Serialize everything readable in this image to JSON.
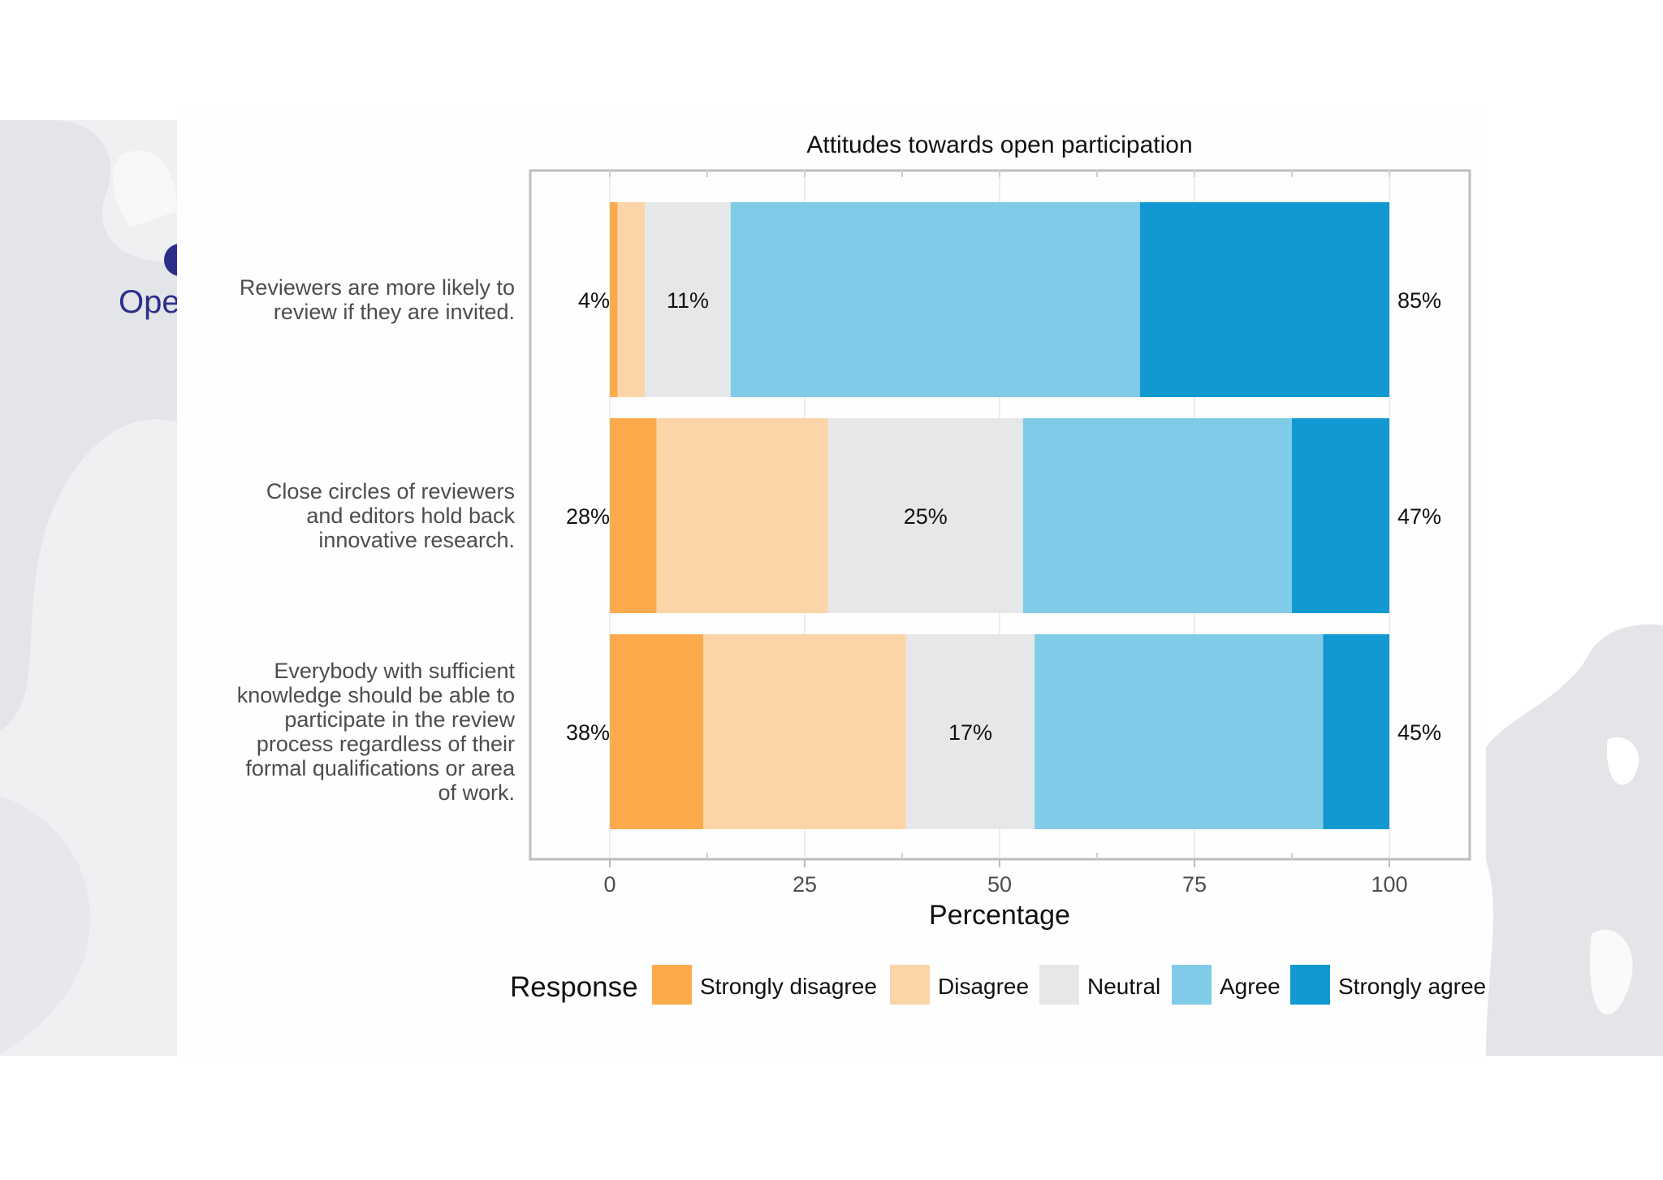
{
  "logo": {
    "text": "Ope"
  },
  "colors": {
    "strongly_disagree": "#FDAA4C",
    "disagree": "#FBD5A7",
    "neutral": "#E6E7E9",
    "agree": "#80CBE8",
    "strongly_agree": "#1399D1",
    "frame": "#BDBDBD",
    "text": "#4D4D4D",
    "logo": "#2B2F8A",
    "blob": "#E3E5E8"
  },
  "chart_data": {
    "type": "bar",
    "orientation": "horizontal",
    "stacked": true,
    "title": "Attitudes towards open participation",
    "xlabel": "Percentage",
    "ylabel": "",
    "xlim": [
      -10,
      110
    ],
    "xticks": [
      0,
      25,
      50,
      75,
      100
    ],
    "grid": true,
    "categories": [
      "Reviewers are more likely to review if they are invited.",
      "Close circles of reviewers and editors hold back innovative research.",
      "Everybody with sufficient knowledge should be able to participate in the review process regardless of their formal qualifications or area of work."
    ],
    "category_lines": [
      [
        "Reviewers are more likely to",
        "review if they are invited."
      ],
      [
        "Close circles of reviewers",
        "and editors hold back",
        "innovative research."
      ],
      [
        "Everybody with sufficient",
        "knowledge should be able to",
        "participate in the review",
        "process regardless of their",
        "formal qualifications or area",
        "of work."
      ]
    ],
    "series": [
      {
        "name": "Strongly disagree",
        "values": [
          1,
          6,
          12
        ]
      },
      {
        "name": "Disagree",
        "values": [
          3.5,
          22,
          26
        ]
      },
      {
        "name": "Neutral",
        "values": [
          11,
          25,
          16.5
        ]
      },
      {
        "name": "Agree",
        "values": [
          52.5,
          34.5,
          37
        ]
      },
      {
        "name": "Strongly agree",
        "values": [
          32,
          12.5,
          8.5
        ]
      }
    ],
    "labels_left": [
      "4%",
      "28%",
      "38%"
    ],
    "labels_center": [
      "11%",
      "25%",
      "17%"
    ],
    "labels_right": [
      "85%",
      "47%",
      "45%"
    ],
    "legend": {
      "title": "Response",
      "position": "bottom",
      "items": [
        "Strongly disagree",
        "Disagree",
        "Neutral",
        "Agree",
        "Strongly agree"
      ]
    }
  }
}
